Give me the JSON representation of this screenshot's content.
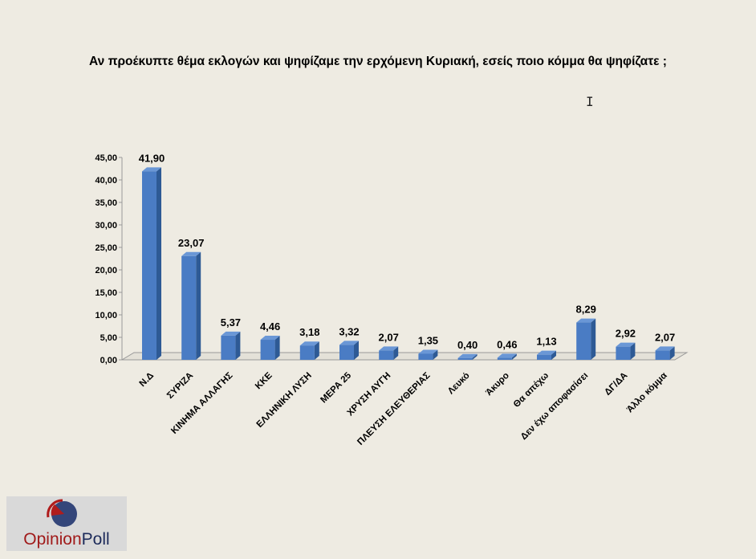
{
  "chart_data": {
    "type": "bar",
    "title": "Αν προέκυπτε θέμα εκλογών και ψηφίζαμε την ερχόμενη Κυριακή, εσείς ποιο κόμμα θα ψηφίζατε ;",
    "categories": [
      "Ν.Δ",
      "ΣΥΡΙΖΑ",
      "ΚΙΝΗΜΑ ΑΛΛΑΓΗΣ",
      "ΚΚΕ",
      "ΕΛΛΗΝΙΚΗ ΛΥΣΗ",
      "ΜΕΡΑ 25",
      "ΧΡΥΣΗ ΑΥΓΗ",
      "ΠΛΕΥΣΗ ΕΛΕΥΘΕΡΙΑΣ",
      "Λευκό",
      "Άκυρο",
      "Θα απέχω",
      "Δεν έχω αποφασίσει",
      "ΔΓ/ΔΑ",
      "Άλλο κόμμα"
    ],
    "values": [
      41.9,
      23.07,
      5.37,
      4.46,
      3.18,
      3.32,
      2.07,
      1.35,
      0.4,
      0.46,
      1.13,
      8.29,
      2.92,
      2.07
    ],
    "value_labels": [
      "41,90",
      "23,07",
      "5,37",
      "4,46",
      "3,18",
      "3,32",
      "2,07",
      "1,35",
      "0,40",
      "0,46",
      "1,13",
      "8,29",
      "2,92",
      "2,07"
    ],
    "y_ticks": [
      "0,00",
      "5,00",
      "10,00",
      "15,00",
      "20,00",
      "25,00",
      "30,00",
      "35,00",
      "40,00",
      "45,00"
    ],
    "ylim": [
      0,
      45
    ],
    "xlabel": "",
    "ylabel": "",
    "grid": false,
    "legend": "none",
    "colors": {
      "bar_front": "#4a7cc4",
      "bar_side": "#2e5a95",
      "bar_top": "#6a97d6"
    }
  },
  "logo": {
    "part1": "Opinion",
    "part2": "Poll"
  },
  "cursor_icon": "text-cursor-icon"
}
